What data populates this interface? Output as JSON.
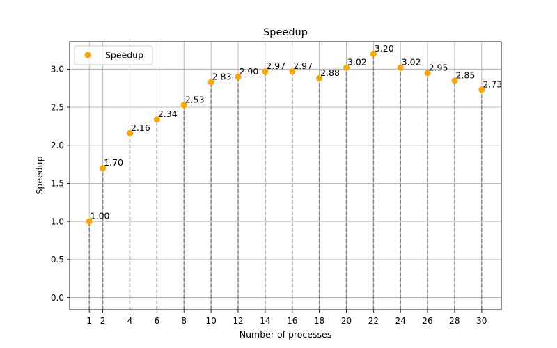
{
  "chart_data": {
    "type": "scatter",
    "title": "Speedup",
    "xlabel": "Number of processes",
    "ylabel": "Speedup",
    "x": [
      1,
      2,
      4,
      6,
      8,
      10,
      12,
      14,
      16,
      18,
      20,
      22,
      24,
      26,
      28,
      30
    ],
    "series": [
      {
        "name": "Speedup",
        "color": "#ffa500",
        "values": [
          1.0,
          1.7,
          2.16,
          2.34,
          2.53,
          2.83,
          2.9,
          2.97,
          2.97,
          2.88,
          3.02,
          3.2,
          3.02,
          2.95,
          2.85,
          2.73
        ],
        "labels": [
          "1.00",
          "1.70",
          "2.16",
          "2.34",
          "2.53",
          "2.83",
          "2.90",
          "2.97",
          "2.97",
          "2.88",
          "3.02",
          "3.20",
          "3.02",
          "2.95",
          "2.85",
          "2.73"
        ]
      }
    ],
    "xticks": [
      "1",
      "2",
      "4",
      "6",
      "8",
      "10",
      "12",
      "14",
      "16",
      "18",
      "20",
      "22",
      "24",
      "26",
      "28",
      "30"
    ],
    "yticks": [
      "0.0",
      "0.5",
      "1.0",
      "1.5",
      "2.0",
      "2.5",
      "3.0"
    ],
    "xlim": [
      -0.45,
      31.45
    ],
    "ylim": [
      -0.16,
      3.36
    ],
    "grid": true,
    "stems": "dashed-gray",
    "legend_position": "top-left"
  }
}
